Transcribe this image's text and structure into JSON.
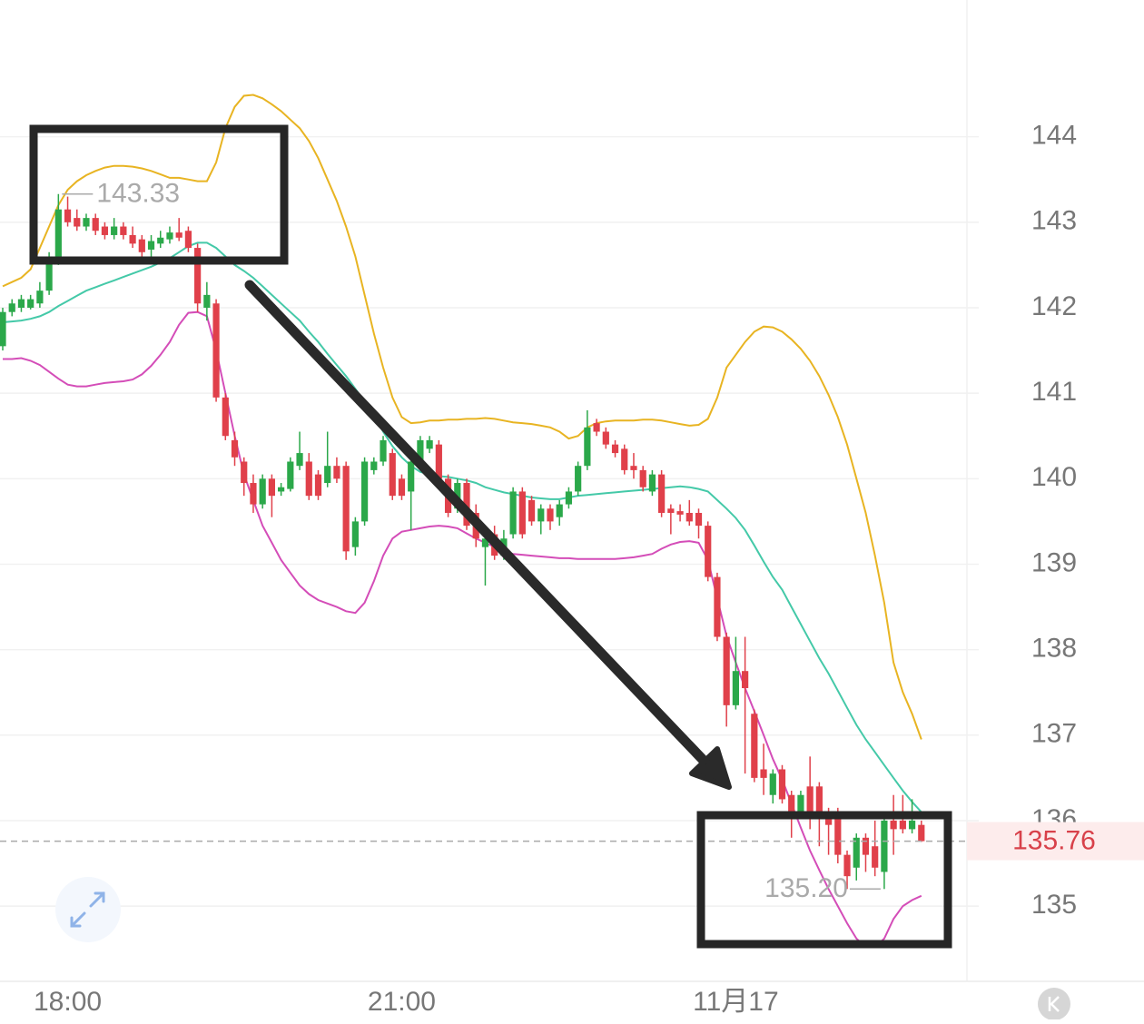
{
  "chart_data": {
    "type": "candlestick",
    "categories": [
      null,
      null,
      null,
      null,
      null,
      null,
      null,
      "18:00",
      null,
      null,
      null,
      null,
      null,
      null,
      null,
      null,
      null,
      null,
      null,
      null,
      null,
      null,
      null,
      null,
      null,
      null,
      null,
      null,
      null,
      null,
      null,
      null,
      null,
      null,
      null,
      null,
      null,
      null,
      null,
      null,
      null,
      null,
      null,
      "21:00",
      null,
      null,
      null,
      null,
      null,
      null,
      null,
      null,
      null,
      null,
      null,
      null,
      null,
      null,
      null,
      null,
      null,
      null,
      null,
      null,
      null,
      null,
      null,
      null,
      null,
      null,
      null,
      null,
      null,
      null,
      null,
      null,
      null,
      null,
      null,
      "11月17",
      null,
      null,
      null,
      null,
      null,
      null,
      null,
      null,
      null,
      null,
      null,
      null,
      null,
      null,
      null,
      null,
      null,
      null,
      null,
      null
    ],
    "open": [
      141.55,
      141.95,
      142.0,
      142.0,
      142.05,
      142.2,
      142.6,
      143.15,
      143.05,
      142.95,
      143.05,
      142.95,
      142.85,
      142.95,
      142.85,
      142.8,
      142.68,
      142.75,
      142.8,
      142.88,
      142.9,
      142.7,
      142.0,
      142.05,
      140.95,
      140.45,
      140.2,
      139.95,
      139.7,
      140.0,
      139.85,
      139.88,
      140.15,
      140.2,
      140.05,
      139.95,
      140.15,
      140.15,
      139.2,
      139.5,
      140.1,
      140.2,
      140.3,
      140.0,
      139.85,
      140.2,
      140.35,
      140.4,
      140.0,
      139.65,
      139.95,
      139.6,
      139.2,
      139.35,
      139.1,
      139.35,
      139.85,
      139.75,
      139.5,
      139.65,
      139.55,
      139.7,
      139.85,
      140.15,
      140.65,
      140.55,
      140.4,
      140.35,
      140.15,
      140.1,
      139.85,
      140.05,
      139.65,
      139.62,
      139.6,
      139.6,
      139.45,
      138.85,
      138.15,
      137.35,
      137.75,
      137.25,
      136.6,
      136.3,
      136.6,
      136.3,
      136.1,
      136.4,
      136.4,
      136.1,
      136.1,
      135.6,
      135.45,
      135.8,
      135.7,
      135.4,
      136.0,
      136.0,
      135.9,
      135.95
    ],
    "high": [
      142.0,
      142.1,
      142.15,
      142.15,
      142.3,
      142.65,
      143.33,
      143.3,
      143.15,
      143.1,
      143.1,
      143.0,
      143.05,
      143.0,
      142.95,
      142.85,
      142.85,
      142.9,
      142.95,
      143.05,
      142.95,
      142.75,
      142.3,
      142.1,
      141.0,
      140.55,
      140.25,
      140.05,
      140.05,
      140.05,
      139.95,
      140.25,
      140.55,
      140.3,
      140.1,
      140.55,
      140.25,
      140.2,
      139.55,
      140.25,
      140.25,
      140.5,
      140.35,
      140.05,
      140.25,
      140.5,
      140.5,
      140.45,
      140.05,
      140.0,
      140.0,
      139.7,
      139.35,
      139.45,
      139.4,
      139.9,
      139.9,
      139.8,
      139.7,
      139.7,
      139.75,
      139.9,
      140.2,
      140.8,
      140.7,
      140.6,
      140.45,
      140.4,
      140.3,
      140.15,
      140.1,
      140.1,
      139.7,
      139.7,
      139.75,
      139.65,
      139.5,
      138.9,
      138.2,
      138.15,
      138.15,
      137.3,
      136.9,
      136.6,
      136.65,
      136.35,
      136.35,
      136.75,
      136.45,
      136.15,
      136.15,
      135.65,
      135.85,
      135.85,
      136.0,
      136.05,
      136.3,
      136.3,
      136.25,
      136.0
    ],
    "low": [
      141.5,
      141.9,
      141.95,
      141.98,
      142.0,
      142.15,
      142.5,
      142.95,
      142.9,
      142.9,
      142.85,
      142.8,
      142.8,
      142.8,
      142.7,
      142.6,
      142.6,
      142.7,
      142.75,
      142.78,
      142.65,
      141.95,
      141.85,
      140.9,
      140.45,
      140.15,
      139.8,
      139.6,
      139.65,
      139.55,
      139.8,
      139.85,
      140.1,
      139.75,
      139.75,
      139.9,
      139.95,
      139.05,
      139.1,
      139.45,
      140.05,
      140.15,
      139.75,
      139.75,
      139.4,
      140.15,
      140.3,
      139.95,
      139.55,
      139.6,
      139.4,
      139.2,
      138.75,
      139.05,
      139.05,
      139.3,
      139.3,
      139.45,
      139.35,
      139.4,
      139.45,
      139.65,
      139.8,
      140.1,
      140.5,
      140.35,
      140.25,
      140.05,
      140.0,
      139.85,
      139.8,
      139.55,
      139.35,
      139.5,
      139.45,
      139.3,
      138.8,
      138.1,
      137.1,
      137.3,
      136.55,
      136.45,
      136.3,
      136.2,
      136.2,
      135.8,
      136.05,
      135.9,
      135.7,
      135.6,
      135.5,
      135.2,
      135.3,
      135.4,
      135.35,
      135.2,
      135.6,
      135.85,
      135.85,
      135.75
    ],
    "close": [
      141.95,
      142.05,
      142.1,
      142.1,
      142.2,
      142.6,
      143.15,
      143.0,
      142.95,
      143.05,
      142.9,
      142.85,
      142.95,
      142.85,
      142.75,
      142.65,
      142.78,
      142.82,
      142.88,
      142.82,
      142.7,
      142.05,
      142.15,
      140.95,
      140.5,
      140.25,
      139.95,
      139.7,
      140.0,
      139.8,
      139.9,
      140.2,
      140.3,
      139.8,
      139.8,
      140.15,
      140.0,
      139.15,
      139.5,
      140.2,
      140.2,
      140.45,
      139.8,
      139.8,
      140.2,
      140.45,
      140.45,
      140.0,
      139.6,
      139.95,
      139.45,
      139.3,
      139.3,
      139.1,
      139.3,
      139.85,
      139.35,
      139.5,
      139.65,
      139.5,
      139.7,
      139.85,
      140.15,
      140.6,
      140.55,
      140.4,
      140.3,
      140.1,
      140.1,
      139.9,
      140.05,
      139.6,
      139.6,
      139.58,
      139.5,
      139.45,
      138.85,
      138.15,
      137.35,
      137.75,
      137.55,
      136.5,
      136.5,
      136.55,
      136.25,
      136.1,
      136.3,
      136.1,
      136.1,
      135.95,
      135.6,
      135.35,
      135.8,
      135.6,
      135.45,
      136.0,
      135.9,
      135.9,
      136.0,
      135.76
    ],
    "up_color": "#2ba84a",
    "down_color": "#e0404a",
    "bands": [
      {
        "color": "#e8b422",
        "values": [
          142.25,
          142.3,
          142.35,
          142.45,
          142.7,
          142.95,
          143.2,
          143.38,
          143.48,
          143.55,
          143.6,
          143.64,
          143.66,
          143.66,
          143.65,
          143.63,
          143.6,
          143.56,
          143.52,
          143.52,
          143.5,
          143.48,
          143.48,
          143.7,
          144.1,
          144.35,
          144.48,
          144.49,
          144.45,
          144.38,
          144.3,
          144.2,
          144.1,
          143.95,
          143.75,
          143.5,
          143.25,
          142.95,
          142.6,
          142.15,
          141.7,
          141.3,
          140.95,
          140.72,
          140.65,
          140.66,
          140.68,
          140.68,
          140.69,
          140.69,
          140.7,
          140.7,
          140.71,
          140.7,
          140.68,
          140.66,
          140.65,
          140.64,
          140.62,
          140.6,
          140.55,
          140.47,
          140.5,
          140.6,
          140.65,
          140.67,
          140.68,
          140.68,
          140.68,
          140.69,
          140.69,
          140.68,
          140.66,
          140.64,
          140.62,
          140.63,
          140.7,
          140.95,
          141.3,
          141.45,
          141.6,
          141.72,
          141.78,
          141.77,
          141.72,
          141.63,
          141.52,
          141.38,
          141.2,
          140.98,
          140.72,
          140.4,
          140.0,
          139.6,
          139.1,
          138.55,
          137.85,
          137.5,
          137.25,
          136.95
        ]
      },
      {
        "color": "#44c9a8",
        "values": [
          141.83,
          141.84,
          141.85,
          141.87,
          141.9,
          141.95,
          142.02,
          142.08,
          142.14,
          142.2,
          142.24,
          142.28,
          142.32,
          142.36,
          142.4,
          142.44,
          142.48,
          142.53,
          142.58,
          142.65,
          142.72,
          142.76,
          142.76,
          142.7,
          142.6,
          142.5,
          142.43,
          142.35,
          142.25,
          142.15,
          142.05,
          141.95,
          141.85,
          141.72,
          141.6,
          141.46,
          141.33,
          141.2,
          141.05,
          140.9,
          140.75,
          140.55,
          140.38,
          140.25,
          140.15,
          140.08,
          140.05,
          140.03,
          140.02,
          140.0,
          139.98,
          139.95,
          139.9,
          139.87,
          139.84,
          139.82,
          139.8,
          139.78,
          139.77,
          139.76,
          139.76,
          139.78,
          139.8,
          139.81,
          139.82,
          139.83,
          139.84,
          139.85,
          139.86,
          139.87,
          139.88,
          139.89,
          139.9,
          139.91,
          139.9,
          139.88,
          139.85,
          139.75,
          139.65,
          139.54,
          139.4,
          139.22,
          139.03,
          138.85,
          138.7,
          138.5,
          138.3,
          138.1,
          137.9,
          137.72,
          137.52,
          137.32,
          137.12,
          136.95,
          136.8,
          136.65,
          136.5,
          136.35,
          136.22,
          136.1
        ]
      },
      {
        "color": "#d44db8",
        "values": [
          141.4,
          141.4,
          141.41,
          141.38,
          141.33,
          141.25,
          141.17,
          141.1,
          141.08,
          141.08,
          141.1,
          141.12,
          141.13,
          141.14,
          141.16,
          141.22,
          141.32,
          141.45,
          141.6,
          141.8,
          141.94,
          141.95,
          141.9,
          141.5,
          141.0,
          140.5,
          140.05,
          139.75,
          139.45,
          139.25,
          139.05,
          138.9,
          138.75,
          138.65,
          138.58,
          138.54,
          138.5,
          138.45,
          138.43,
          138.55,
          138.8,
          139.1,
          139.3,
          139.38,
          139.4,
          139.42,
          139.44,
          139.45,
          139.44,
          139.42,
          139.36,
          139.3,
          139.25,
          139.2,
          139.15,
          139.12,
          139.11,
          139.1,
          139.09,
          139.08,
          139.07,
          139.07,
          139.06,
          139.06,
          139.06,
          139.06,
          139.06,
          139.07,
          139.08,
          139.1,
          139.12,
          139.18,
          139.23,
          139.26,
          139.27,
          139.25,
          139.05,
          138.6,
          138.16,
          137.85,
          137.55,
          137.28,
          137.0,
          136.72,
          136.48,
          136.2,
          135.92,
          135.65,
          135.42,
          135.2,
          135.0,
          134.8,
          134.62,
          134.52,
          134.52,
          134.62,
          134.85,
          135.0,
          135.07,
          135.12
        ]
      }
    ],
    "ylim": [
      134.12,
      145.6
    ],
    "yticks": [
      135,
      136,
      137,
      138,
      139,
      140,
      141,
      142,
      143,
      144
    ],
    "grid": true,
    "max_label": 143.33,
    "min_label": {
      "value": 135.2,
      "label": "135.20"
    },
    "last_price": 135.76
  }
}
